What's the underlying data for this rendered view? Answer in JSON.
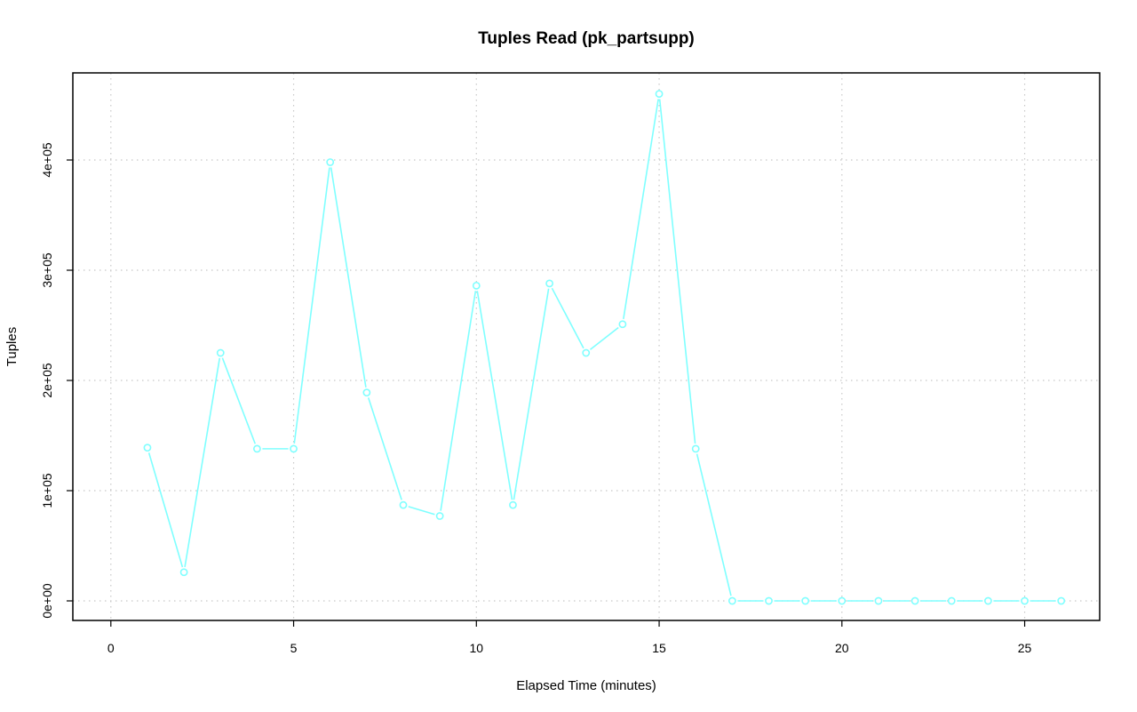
{
  "chart_data": {
    "type": "line",
    "title": "Tuples Read (pk_partsupp)",
    "xlabel": "Elapsed Time (minutes)",
    "ylabel": "Tuples",
    "xlim": [
      0,
      26
    ],
    "ylim": [
      0,
      460000
    ],
    "x_ticks": [
      0,
      5,
      10,
      15,
      20,
      25
    ],
    "x_tick_labels": [
      "0",
      "5",
      "10",
      "15",
      "20",
      "25"
    ],
    "y_ticks": [
      0,
      100000,
      200000,
      300000,
      400000
    ],
    "y_tick_labels": [
      "0e+00",
      "1e+05",
      "2e+05",
      "3e+05",
      "4e+05"
    ],
    "grid": true,
    "series": [
      {
        "color": "#7fffff",
        "marker": "circle",
        "x": [
          1,
          2,
          3,
          4,
          5,
          6,
          7,
          8,
          9,
          10,
          11,
          12,
          13,
          14,
          15,
          16,
          17,
          18,
          19,
          20,
          21,
          22,
          23,
          24,
          25,
          26
        ],
        "values": [
          139000,
          26000,
          225000,
          138000,
          138000,
          398000,
          189000,
          87000,
          77000,
          286000,
          87000,
          288000,
          225000,
          251000,
          460000,
          138000,
          0,
          0,
          0,
          0,
          0,
          0,
          0,
          0,
          0,
          0
        ]
      }
    ]
  }
}
